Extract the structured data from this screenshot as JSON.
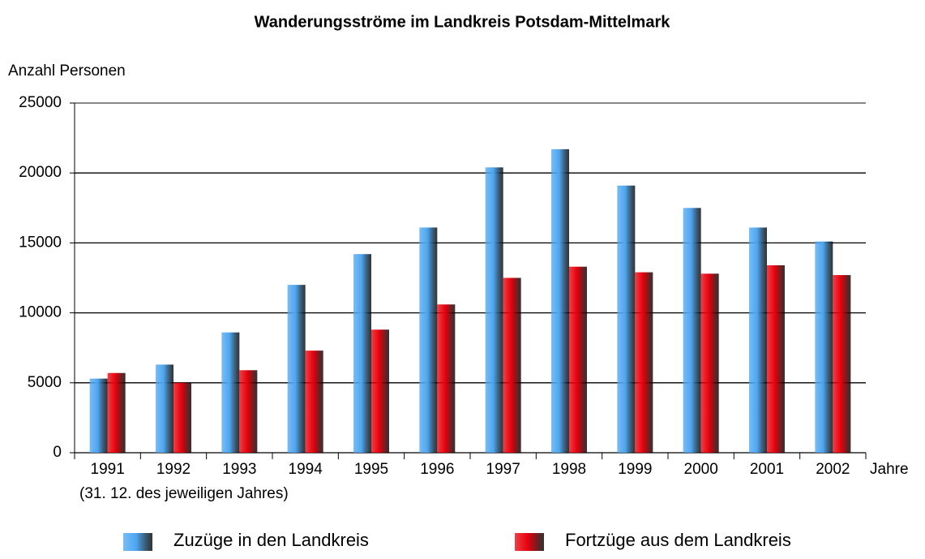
{
  "chart_data": {
    "type": "bar",
    "title": "Wanderungsströme im Landkreis Potsdam-Mittelmark",
    "y_label": "Anzahl Personen",
    "x_label": "Jahre",
    "annotation": "(31. 12. des jeweiligen Jahres)",
    "categories": [
      "1991",
      "1992",
      "1993",
      "1994",
      "1995",
      "1996",
      "1997",
      "1998",
      "1999",
      "2000",
      "2001",
      "2002"
    ],
    "series": [
      {
        "name": "Zuzüge in den Landkreis",
        "color": "#4da6f0",
        "values": [
          5300,
          6300,
          8600,
          12000,
          14200,
          16100,
          20400,
          21700,
          19100,
          17500,
          16100,
          15100
        ]
      },
      {
        "name": "Fortzüge aus dem Landkreis",
        "color": "#e8000b",
        "values": [
          5700,
          5000,
          5900,
          7300,
          8800,
          10600,
          12500,
          13300,
          12900,
          12800,
          13400,
          12700
        ]
      }
    ],
    "ylim": [
      0,
      25000
    ],
    "yticks": [
      0,
      5000,
      10000,
      15000,
      20000,
      25000
    ],
    "grid": true,
    "legend": "bottom"
  }
}
